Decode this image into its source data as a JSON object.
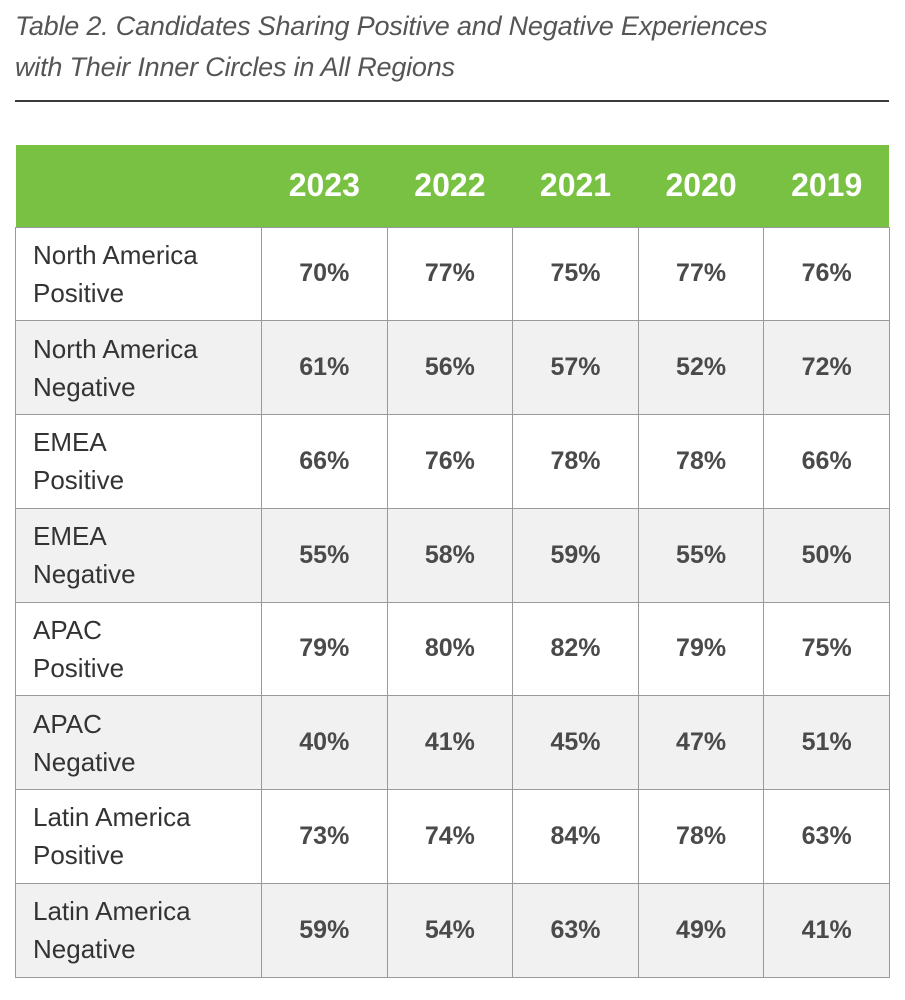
{
  "caption": "Table 2. Candidates Sharing Positive and Negative Experiences\nwith Their Inner Circles in All Regions",
  "colors": {
    "header_bg": "#79c143",
    "header_text": "#ffffff",
    "row_alt_bg": "#f1f1f1",
    "border": "#9a9a9a"
  },
  "table": {
    "years": [
      "2023",
      "2022",
      "2021",
      "2020",
      "2019"
    ],
    "rows": [
      {
        "label": "North America\nPositive",
        "values": [
          "70%",
          "77%",
          "75%",
          "77%",
          "76%"
        ]
      },
      {
        "label": "North America\nNegative",
        "values": [
          "61%",
          "56%",
          "57%",
          "52%",
          "72%"
        ]
      },
      {
        "label": "EMEA\nPositive",
        "values": [
          "66%",
          "76%",
          "78%",
          "78%",
          "66%"
        ]
      },
      {
        "label": "EMEA\nNegative",
        "values": [
          "55%",
          "58%",
          "59%",
          "55%",
          "50%"
        ]
      },
      {
        "label": "APAC\nPositive",
        "values": [
          "79%",
          "80%",
          "82%",
          "79%",
          "75%"
        ]
      },
      {
        "label": "APAC\nNegative",
        "values": [
          "40%",
          "41%",
          "45%",
          "47%",
          "51%"
        ]
      },
      {
        "label": "Latin America\nPositive",
        "values": [
          "73%",
          "74%",
          "84%",
          "78%",
          "63%"
        ]
      },
      {
        "label": "Latin America\nNegative",
        "values": [
          "59%",
          "54%",
          "63%",
          "49%",
          "41%"
        ]
      }
    ]
  }
}
